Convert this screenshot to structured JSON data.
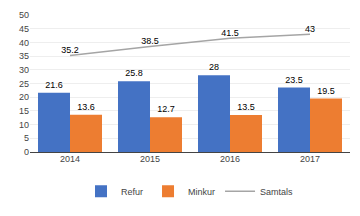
{
  "chart_data": {
    "type": "bar",
    "categories": [
      "2014",
      "2015",
      "2016",
      "2017"
    ],
    "series": [
      {
        "name": "Refur",
        "type": "bar",
        "color": "#4472C4",
        "values": [
          21.6,
          25.8,
          28,
          23.5
        ]
      },
      {
        "name": "Minkur",
        "type": "bar",
        "color": "#ED7D31",
        "values": [
          13.6,
          12.7,
          13.5,
          19.5
        ]
      },
      {
        "name": "Samtals",
        "type": "line",
        "color": "#A5A5A5",
        "values": [
          35.2,
          38.5,
          41.5,
          43
        ]
      }
    ],
    "ylim": [
      0,
      50
    ],
    "yticks": [
      0,
      5,
      10,
      15,
      20,
      25,
      30,
      35,
      40,
      45,
      50
    ],
    "grid": true,
    "legend": "bottom",
    "data_labels": true
  }
}
